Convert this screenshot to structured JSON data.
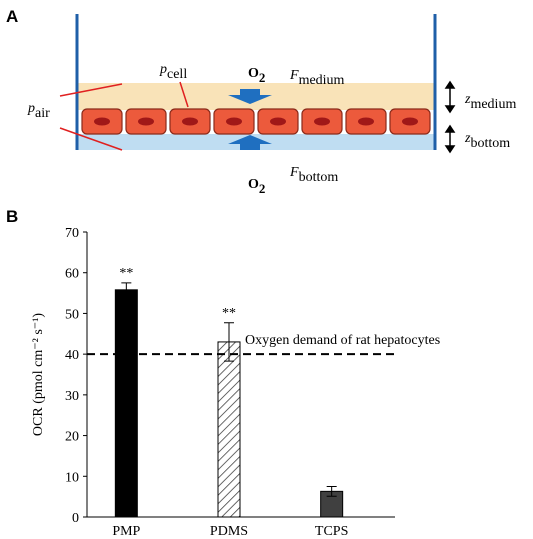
{
  "panel_a": {
    "panel_label": "A",
    "labels": [
      {
        "symbol": "p",
        "sub": "cell"
      },
      {
        "symbol": "O",
        "sub": "2"
      },
      {
        "symbol": "F",
        "sub": "medium"
      },
      {
        "symbol": "z",
        "sub": "medium"
      },
      {
        "symbol": "p",
        "sub": "air"
      },
      {
        "symbol": "z",
        "sub": "bottom"
      },
      {
        "symbol": "O",
        "sub": "2"
      },
      {
        "symbol": "F",
        "sub": "bottom"
      }
    ]
  },
  "chart_data": {
    "type": "bar",
    "panel_label": "B",
    "y_label": "OCR (pmol cm⁻² s⁻¹)",
    "categories": [
      "PMP",
      "PDMS",
      "TCPS"
    ],
    "values": [
      55.8,
      43,
      6.3
    ],
    "errors": [
      1.7,
      4.7,
      1.2
    ],
    "significance": [
      "**",
      "**",
      null
    ],
    "colors": [
      "#000000",
      "hatch",
      "#404040"
    ],
    "reference_line": {
      "value": 40,
      "label": "Oxygen demand of rat hepatocytes"
    },
    "ylim": [
      0,
      70
    ],
    "yticks": [
      0,
      10,
      20,
      30,
      40,
      50,
      60,
      70
    ]
  }
}
